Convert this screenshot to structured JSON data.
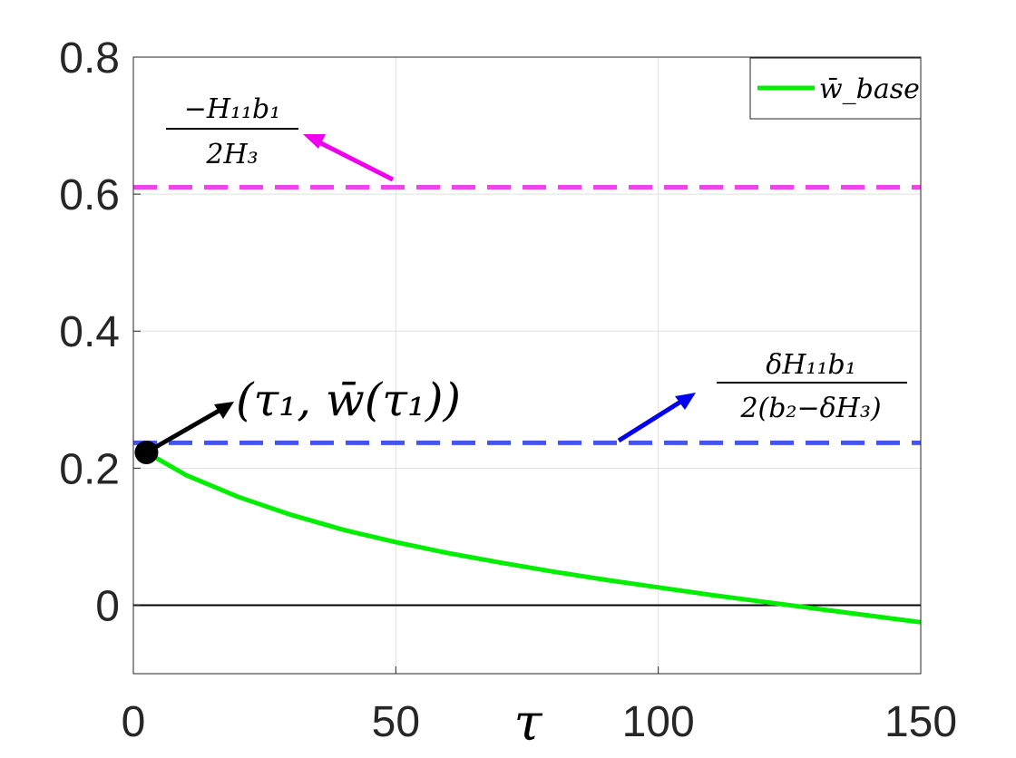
{
  "chart_data": {
    "type": "line",
    "xlabel": "τ",
    "ylabel": "",
    "xlim": [
      0,
      150
    ],
    "ylim": [
      -0.1,
      0.8
    ],
    "xticks": [
      0,
      50,
      100,
      150
    ],
    "yticks": [
      0,
      0.2,
      0.4,
      0.6,
      0.8
    ],
    "x_tick_labels": [
      "0",
      "50",
      "100",
      "150"
    ],
    "y_tick_labels": [
      "0",
      "0.2",
      "0.4",
      "0.6",
      "0.8"
    ],
    "grid": true,
    "legend_position": "top-right",
    "series": [
      {
        "name": "w̄_base",
        "color": "#00ee00",
        "x": [
          2.5,
          10,
          20,
          30,
          40,
          50,
          60,
          70,
          80,
          90,
          100,
          110,
          120,
          130,
          140,
          150
        ],
        "y": [
          0.223,
          0.19,
          0.158,
          0.132,
          0.11,
          0.092,
          0.076,
          0.062,
          0.049,
          0.037,
          0.026,
          0.015,
          0.005,
          -0.005,
          -0.015,
          -0.025
        ]
      }
    ],
    "reference_lines": [
      {
        "value": 0.61,
        "color": "#ee44ee",
        "style": "dashed",
        "label_num": "−H₁₁b₁",
        "label_den": "2H₃"
      },
      {
        "value": 0.237,
        "color": "#4455ee",
        "style": "dashed",
        "label_num": "δH₁₁b₁",
        "label_den": "2(b₂−δH₃)"
      },
      {
        "value": 0,
        "color": "#000000",
        "style": "solid"
      }
    ],
    "marker": {
      "x": 2.5,
      "y": 0.223,
      "label": "(τ₁, w̄(τ₁))"
    }
  }
}
